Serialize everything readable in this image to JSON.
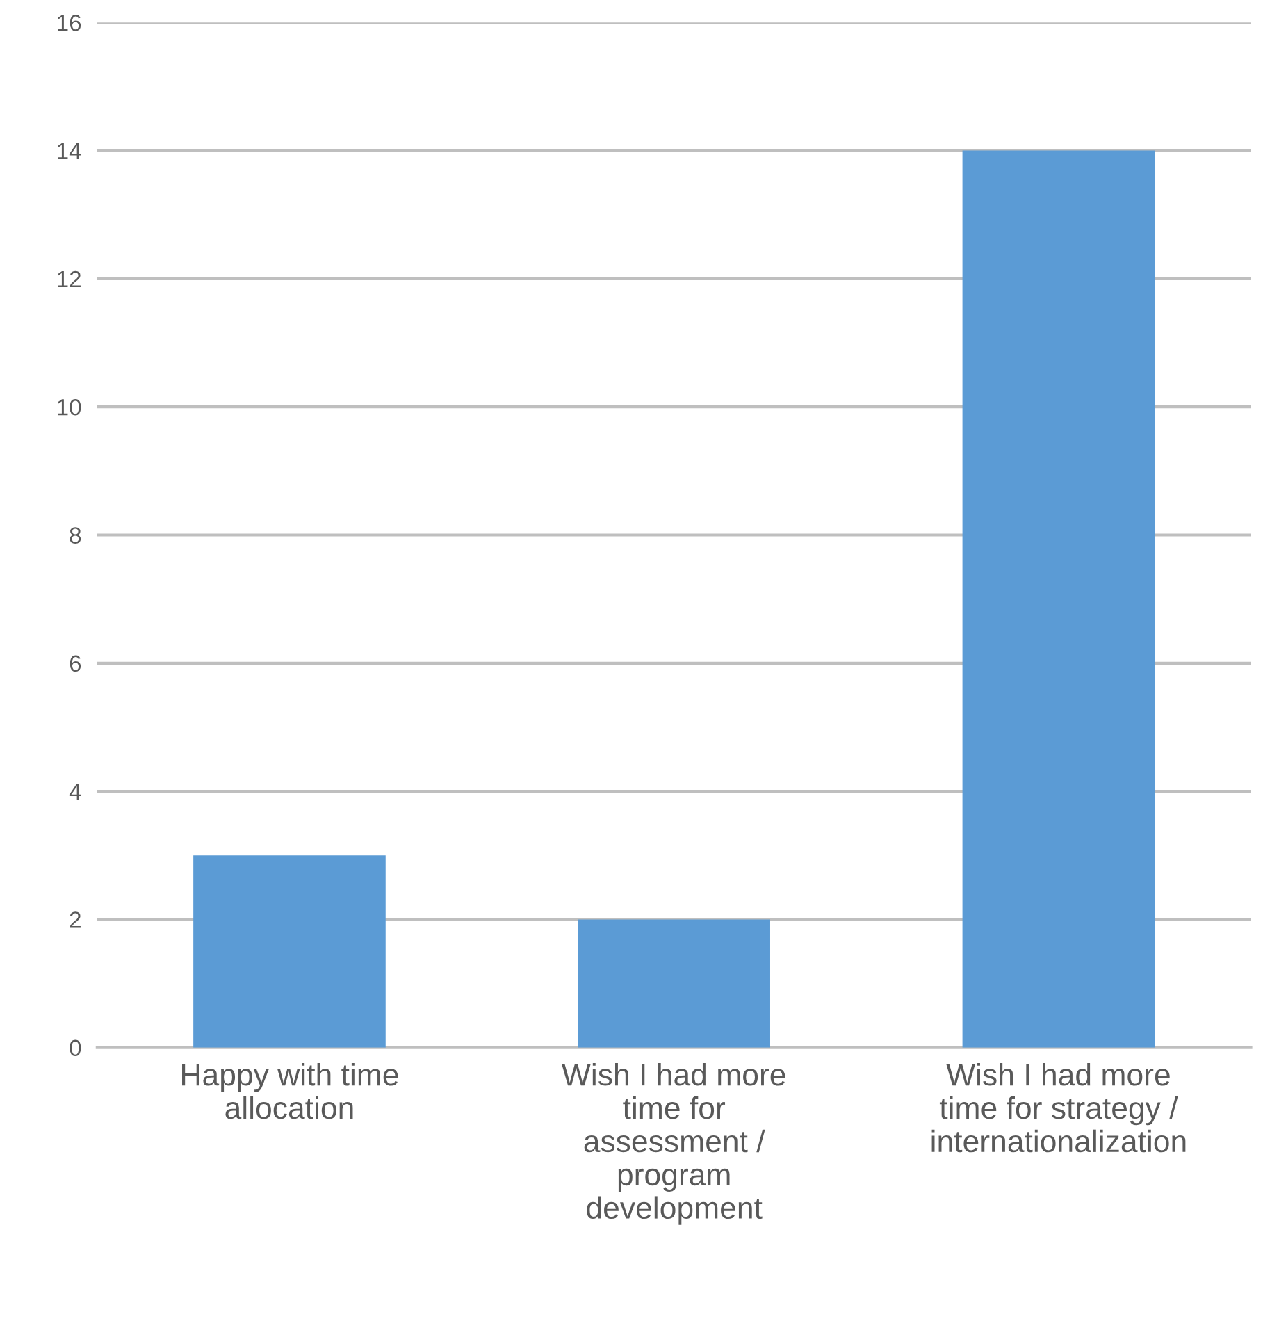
{
  "chart_data": {
    "type": "bar",
    "categories": [
      "Happy with time\nallocation",
      "Wish I had more\ntime for\nassessment /\nprogram\ndevelopment",
      "Wish I had more\ntime for strategy /\ninternationalization"
    ],
    "values": [
      3,
      2,
      14
    ],
    "color": "#5b9bd5",
    "ylim": [
      0,
      16
    ],
    "yticks": [
      0,
      2,
      4,
      6,
      8,
      10,
      12,
      14,
      16
    ],
    "grid": "y"
  }
}
